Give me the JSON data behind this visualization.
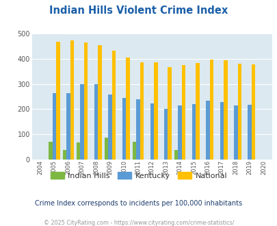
{
  "title": "Indian Hills Violent Crime Index",
  "years": [
    2004,
    2005,
    2006,
    2007,
    2008,
    2009,
    2010,
    2011,
    2012,
    2013,
    2014,
    2015,
    2016,
    2017,
    2018,
    2019,
    2020
  ],
  "indian_hills": [
    0,
    70,
    37,
    67,
    0,
    87,
    0,
    70,
    0,
    0,
    37,
    0,
    0,
    0,
    0,
    0,
    0
  ],
  "kentucky": [
    0,
    265,
    263,
    298,
    298,
    259,
    244,
    240,
    224,
    202,
    215,
    220,
    234,
    228,
    214,
    217,
    0
  ],
  "national": [
    0,
    469,
    474,
    467,
    455,
    432,
    405,
    388,
    387,
    367,
    377,
    383,
    398,
    394,
    381,
    379,
    0
  ],
  "bar_color_ih": "#7db843",
  "bar_color_ky": "#5b9bd5",
  "bar_color_nat": "#ffc000",
  "bg_color": "#dce9f0",
  "ylim": [
    0,
    500
  ],
  "yticks": [
    0,
    100,
    200,
    300,
    400,
    500
  ],
  "subtitle": "Crime Index corresponds to incidents per 100,000 inhabitants",
  "footer": "© 2025 CityRating.com - https://www.cityrating.com/crime-statistics/",
  "legend_labels": [
    "Indian Hills",
    "Kentucky",
    "National"
  ],
  "title_color": "#1a5fa8",
  "subtitle_color": "#1a3a6b",
  "footer_color": "#999999",
  "bar_width": 0.27
}
